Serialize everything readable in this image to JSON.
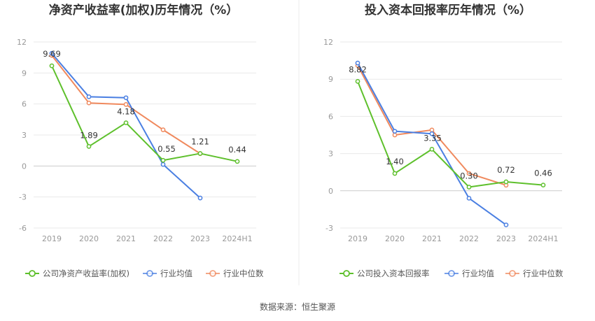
{
  "source": "数据来源：恒生聚源",
  "colors": {
    "company": "#5ec02c",
    "average": "#4a7fe2",
    "median": "#f0895d",
    "grid": "#e9e9e9",
    "axis": "#cccccc",
    "divider": "#eeeeee"
  },
  "chart_data": [
    {
      "type": "line",
      "title": "净资产收益率(加权)历年情况（%）",
      "categories": [
        "2019",
        "2020",
        "2021",
        "2022",
        "2023",
        "2024H1"
      ],
      "ylim": [
        -6,
        12
      ],
      "yticks": [
        -6,
        -3,
        0,
        3,
        6,
        9,
        12
      ],
      "ytick_labels": [
        "-6",
        "-3",
        "0",
        "3",
        "6",
        "9",
        "12"
      ],
      "series": [
        {
          "key": "company",
          "name": "公司净资产收益率(加权)",
          "values": [
            9.69,
            1.89,
            4.18,
            0.55,
            1.21,
            0.44
          ],
          "labels": [
            "9.69",
            "1.89",
            "4.18",
            "0.55",
            "1.21",
            "0.44"
          ]
        },
        {
          "key": "average",
          "name": "行业均值",
          "values": [
            10.9,
            6.7,
            6.6,
            0.15,
            -3.1,
            null
          ]
        },
        {
          "key": "median",
          "name": "行业中位数",
          "values": [
            10.7,
            6.1,
            5.95,
            3.5,
            1.2,
            null
          ]
        }
      ]
    },
    {
      "type": "line",
      "title": "投入资本回报率历年情况（%）",
      "categories": [
        "2019",
        "2020",
        "2021",
        "2022",
        "2023",
        "2024H1"
      ],
      "ylim": [
        -3,
        12
      ],
      "yticks": [
        -3,
        0,
        3,
        6,
        9,
        12
      ],
      "ytick_labels": [
        "-3",
        "0",
        "3",
        "6",
        "9",
        "12"
      ],
      "series": [
        {
          "key": "company",
          "name": "公司投入资本回报率",
          "values": [
            8.82,
            1.4,
            3.35,
            0.3,
            0.72,
            0.46
          ],
          "labels": [
            "8.82",
            "1.40",
            "3.35",
            "0.30",
            "0.72",
            "0.46"
          ]
        },
        {
          "key": "average",
          "name": "行业均值",
          "values": [
            10.3,
            4.8,
            4.6,
            -0.6,
            -2.75,
            null
          ]
        },
        {
          "key": "median",
          "name": "行业中位数",
          "values": [
            10.1,
            4.5,
            4.9,
            1.4,
            0.45,
            null
          ]
        }
      ]
    }
  ]
}
